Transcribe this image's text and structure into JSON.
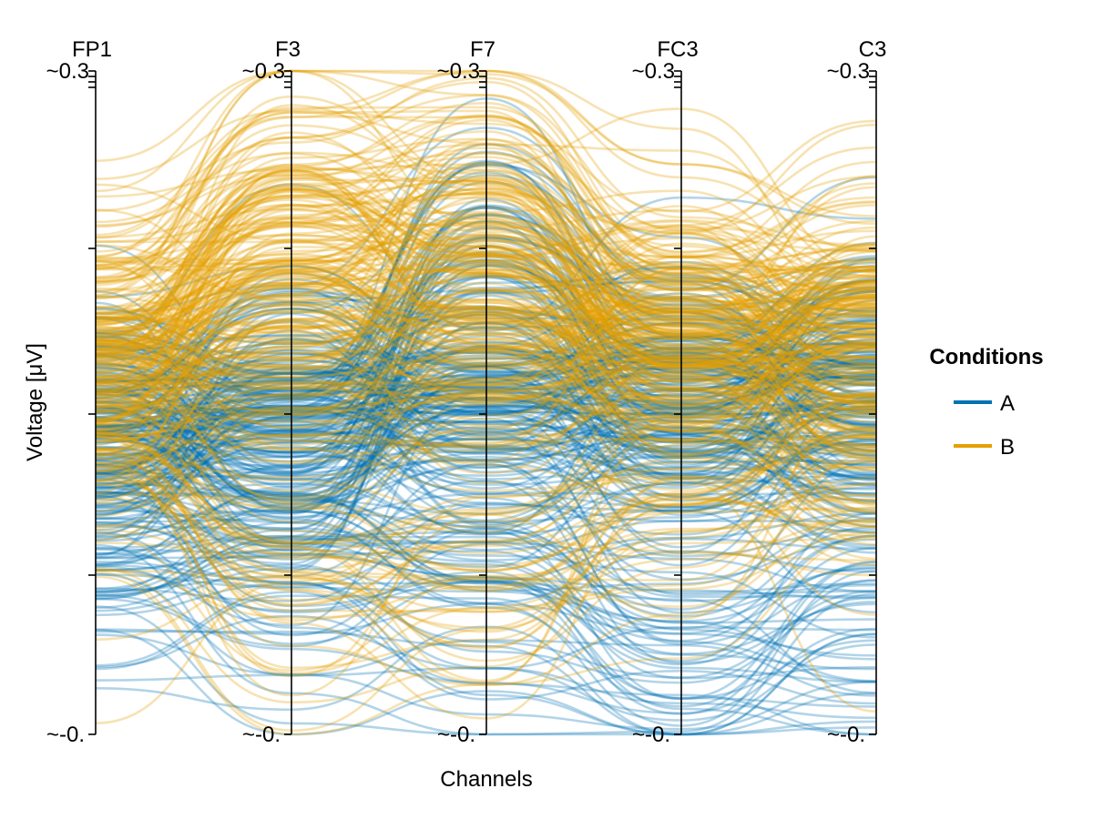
{
  "chart_data": {
    "type": "parallel-coordinates",
    "title": "",
    "xlabel": "Channels",
    "ylabel": "Voltage [μV]",
    "axes": [
      {
        "name": "FP1",
        "top_label": "~0.3",
        "bottom_label": "~-0."
      },
      {
        "name": "F3",
        "top_label": "~0.3",
        "bottom_label": "~-0."
      },
      {
        "name": "F7",
        "top_label": "~0.3",
        "bottom_label": "~-0."
      },
      {
        "name": "FC3",
        "top_label": "~0.3",
        "bottom_label": "~-0."
      },
      {
        "name": "C3",
        "top_label": "~0.3",
        "bottom_label": "~-0."
      }
    ],
    "legend": {
      "title": "Conditions",
      "placement": "right",
      "entries": [
        {
          "label": "A",
          "color": "#0072b2"
        },
        {
          "label": "B",
          "color": "#e69f00"
        }
      ]
    },
    "series": [
      {
        "name": "A",
        "color": "#0072b2",
        "profiles": [
          {
            "fraction": 0.18,
            "values": [
              0.115,
              0.12,
              0.23,
              0.165,
              0.16
            ]
          },
          {
            "fraction": 0.32,
            "values": [
              0.155,
              0.14,
              0.155,
              0.155,
              0.14
            ]
          },
          {
            "fraction": 0.3,
            "values": [
              0.14,
              0.165,
              0.155,
              0.145,
              0.175
            ]
          },
          {
            "fraction": 0.2,
            "values": [
              0.08,
              0.07,
              0.07,
              0.04,
              0.05
            ]
          }
        ]
      },
      {
        "name": "B",
        "color": "#e69f00",
        "profiles": [
          {
            "fraction": 0.3,
            "values": [
              0.18,
              0.245,
              0.245,
              0.195,
              0.2
            ]
          },
          {
            "fraction": 0.35,
            "values": [
              0.175,
              0.2,
              0.19,
              0.175,
              0.185
            ]
          },
          {
            "fraction": 0.2,
            "values": [
              0.145,
              0.15,
              0.16,
              0.18,
              0.15
            ]
          },
          {
            "fraction": 0.15,
            "values": [
              0.12,
              0.07,
              0.065,
              0.1,
              0.13
            ]
          }
        ]
      }
    ]
  }
}
